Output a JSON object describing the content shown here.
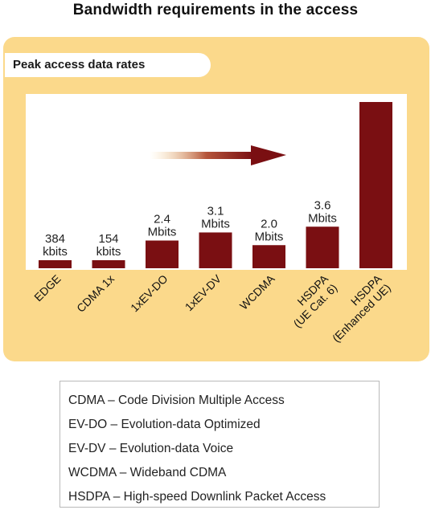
{
  "title": "Bandwidth requirements in the access",
  "chart_data": {
    "type": "bar",
    "subtitle": "Peak access data rates",
    "categories": [
      [
        "EDGE"
      ],
      [
        "CDMA 1x"
      ],
      [
        "1xEV-DO"
      ],
      [
        "1xEV-DV"
      ],
      [
        "WCDMA"
      ],
      [
        "HSDPA",
        "(UE Cat. 6)"
      ],
      [
        "HSDPA",
        "(Enhanced UE)"
      ]
    ],
    "values": [
      0.384,
      0.154,
      2.4,
      3.1,
      2.0,
      3.6,
      14.4
    ],
    "unit": "Mbit/s (estimated from bar heights)",
    "value_labels": [
      [
        "384",
        "kbits"
      ],
      [
        "154",
        "kbits"
      ],
      [
        "2.4",
        "Mbits"
      ],
      [
        "3.1",
        "Mbits"
      ],
      [
        "2.0",
        "Mbits"
      ],
      [
        "3.6",
        "Mbits"
      ],
      []
    ],
    "grid": false,
    "bar_color": "#7a0f12",
    "background_color": "#fbd98b",
    "arrow_color": "#7a0f12",
    "has_trend_arrow": true
  },
  "legend": [
    "CDMA – Code Division Multiple Access",
    "EV-DO – Evolution-data Optimized",
    "EV-DV – Evolution-data Voice",
    "WCDMA – Wideband CDMA",
    "HSDPA – High-speed Downlink Packet Access"
  ]
}
